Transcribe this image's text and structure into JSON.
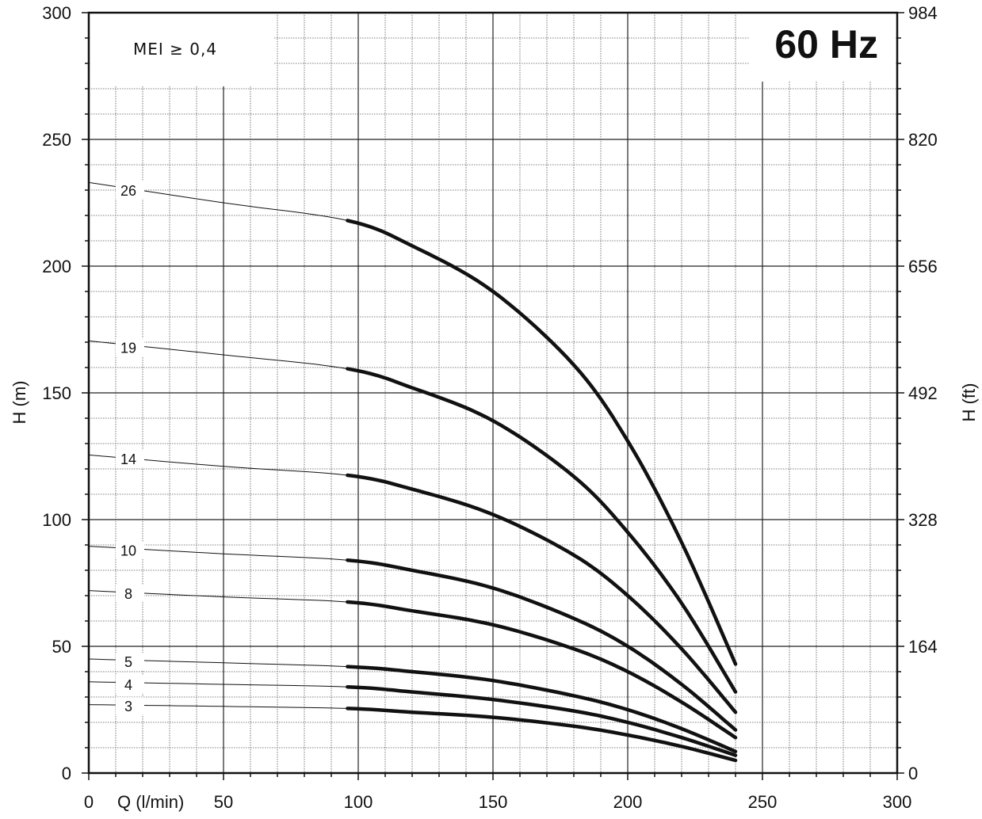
{
  "chart_data": {
    "type": "line",
    "title": "60 Hz",
    "annotation": "MEI ≥ 0,4",
    "xlabel": "Q (l/min)",
    "ylabel": "H (m)",
    "ylabel_right": "H (ft)",
    "xlim": [
      0,
      300
    ],
    "ylim": [
      0,
      300
    ],
    "x_ticks": [
      0,
      50,
      100,
      150,
      200,
      250,
      300
    ],
    "y_ticks": [
      0,
      50,
      100,
      150,
      200,
      250,
      300
    ],
    "y_right_ticks": [
      0,
      164,
      328,
      492,
      656,
      820,
      984
    ],
    "grid": true,
    "operating_range": [
      96,
      240
    ],
    "series": [
      {
        "name": "26",
        "shutoff": 233,
        "label_y": 230,
        "x": [
          0,
          50,
          96,
          120,
          150,
          180,
          200,
          220,
          240
        ],
        "y": [
          233,
          225,
          218,
          208,
          190,
          161,
          131,
          91,
          43
        ]
      },
      {
        "name": "19",
        "shutoff": 170.5,
        "label_y": 168,
        "x": [
          0,
          50,
          96,
          120,
          150,
          180,
          200,
          220,
          240
        ],
        "y": [
          170.5,
          165,
          159.5,
          152,
          139,
          117,
          95,
          67,
          32
        ]
      },
      {
        "name": "14",
        "shutoff": 125.5,
        "label_y": 124,
        "x": [
          0,
          50,
          96,
          120,
          150,
          180,
          200,
          220,
          240
        ],
        "y": [
          125.5,
          121,
          117.5,
          112,
          102,
          86,
          70,
          49,
          24
        ]
      },
      {
        "name": "10",
        "shutoff": 89.5,
        "label_y": 88,
        "x": [
          0,
          50,
          96,
          120,
          150,
          180,
          200,
          220,
          240
        ],
        "y": [
          89.5,
          86.5,
          84,
          80,
          73,
          61,
          50,
          35,
          17
        ]
      },
      {
        "name": "8",
        "shutoff": 72,
        "label_y": 71,
        "x": [
          0,
          50,
          96,
          120,
          150,
          180,
          200,
          220,
          240
        ],
        "y": [
          72,
          69.5,
          67.5,
          64,
          58.5,
          49,
          40,
          28,
          14
        ]
      },
      {
        "name": "5",
        "shutoff": 45,
        "label_y": 44,
        "x": [
          0,
          50,
          96,
          120,
          150,
          180,
          200,
          220,
          240
        ],
        "y": [
          45,
          43.5,
          42,
          40,
          36.5,
          30.5,
          25,
          17.5,
          8.5
        ]
      },
      {
        "name": "4",
        "shutoff": 36,
        "label_y": 35,
        "x": [
          0,
          50,
          96,
          120,
          150,
          180,
          200,
          220,
          240
        ],
        "y": [
          36,
          35,
          34,
          32,
          29,
          24.5,
          20,
          14,
          7
        ]
      },
      {
        "name": "3",
        "shutoff": 27,
        "label_y": 26.5,
        "x": [
          0,
          50,
          96,
          120,
          150,
          180,
          200,
          220,
          240
        ],
        "y": [
          27,
          26.3,
          25.5,
          24,
          22,
          18.5,
          15,
          10.5,
          5
        ]
      }
    ]
  }
}
